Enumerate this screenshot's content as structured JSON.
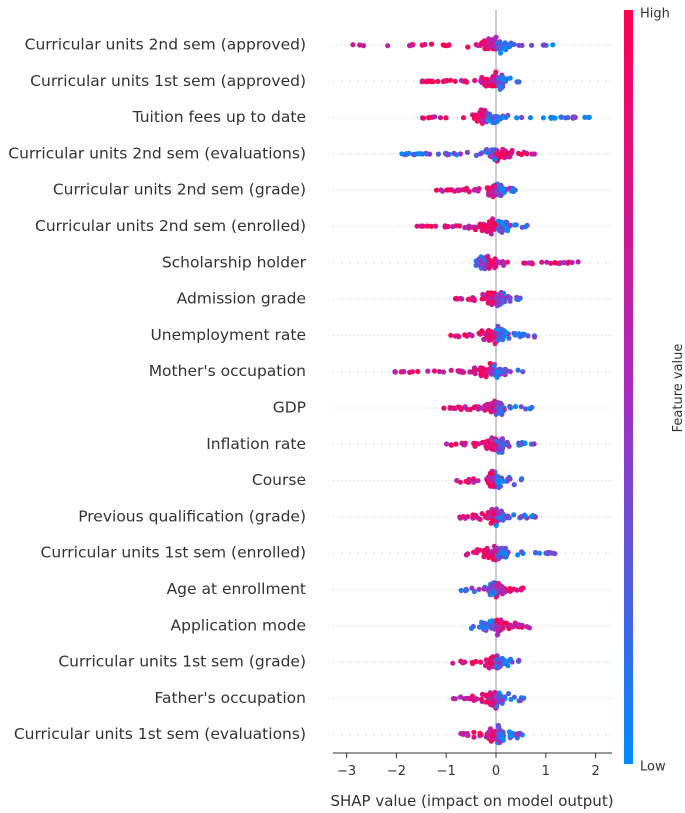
{
  "chart_data": {
    "type": "scatter",
    "subtype": "shap-beeswarm",
    "xlabel": "SHAP value (impact on model output)",
    "xlim": [
      -3.3,
      2.2
    ],
    "xticks": [
      -3,
      -2,
      -1,
      0,
      1,
      2
    ],
    "colorbar": {
      "title": "Feature value",
      "high_label": "High",
      "low_label": "Low",
      "high_color": "#ff0051",
      "mid_color": "#a82bbd",
      "low_color": "#008bfb"
    },
    "features": [
      {
        "name": "Curricular units 2nd sem (approved)",
        "min": -3.0,
        "max": 1.15,
        "center": 0.0,
        "low_side": "right"
      },
      {
        "name": "Curricular units 1st sem (approved)",
        "min": -1.5,
        "max": 0.55,
        "center": 0.0,
        "low_side": "right"
      },
      {
        "name": "Tuition fees up to date",
        "min": -1.5,
        "max": 2.05,
        "center": -0.2,
        "low_side": "right"
      },
      {
        "name": "Curricular units 2nd sem (evaluations)",
        "min": -1.9,
        "max": 0.8,
        "center": 0.0,
        "low_side": "left"
      },
      {
        "name": "Curricular units 2nd sem (grade)",
        "min": -1.2,
        "max": 0.45,
        "center": 0.0,
        "low_side": "right"
      },
      {
        "name": "Curricular units 2nd sem (enrolled)",
        "min": -1.7,
        "max": 0.75,
        "center": 0.0,
        "low_side": "right"
      },
      {
        "name": "Scholarship holder",
        "min": -0.4,
        "max": 1.65,
        "center": -0.2,
        "low_side": "left"
      },
      {
        "name": "Admission grade",
        "min": -0.85,
        "max": 0.5,
        "center": 0.0,
        "low_side": "right"
      },
      {
        "name": "Unemployment rate",
        "min": -1.0,
        "max": 0.8,
        "center": 0.0,
        "low_side": "right"
      },
      {
        "name": "Mother's occupation",
        "min": -2.1,
        "max": 0.55,
        "center": -0.1,
        "low_side": "right"
      },
      {
        "name": "GDP",
        "min": -1.1,
        "max": 0.75,
        "center": 0.0,
        "low_side": "right"
      },
      {
        "name": "Inflation rate",
        "min": -1.0,
        "max": 0.85,
        "center": 0.0,
        "low_side": "right"
      },
      {
        "name": "Course",
        "min": -0.8,
        "max": 0.55,
        "center": -0.05,
        "low_side": "right"
      },
      {
        "name": "Previous qualification (grade)",
        "min": -0.75,
        "max": 0.8,
        "center": 0.0,
        "low_side": "right"
      },
      {
        "name": "Curricular units 1st sem (enrolled)",
        "min": -0.6,
        "max": 1.3,
        "center": 0.0,
        "low_side": "right"
      },
      {
        "name": "Age at enrollment",
        "min": -0.75,
        "max": 0.6,
        "center": 0.0,
        "low_side": "left"
      },
      {
        "name": "Application mode",
        "min": -0.5,
        "max": 0.7,
        "center": 0.0,
        "low_side": "left"
      },
      {
        "name": "Curricular units 1st sem (grade)",
        "min": -0.9,
        "max": 0.55,
        "center": 0.0,
        "low_side": "right"
      },
      {
        "name": "Father's occupation",
        "min": -0.9,
        "max": 0.7,
        "center": 0.0,
        "low_side": "right"
      },
      {
        "name": "Curricular units 1st sem (evaluations)",
        "min": -0.75,
        "max": 0.55,
        "center": 0.0,
        "low_side": "right"
      }
    ]
  }
}
